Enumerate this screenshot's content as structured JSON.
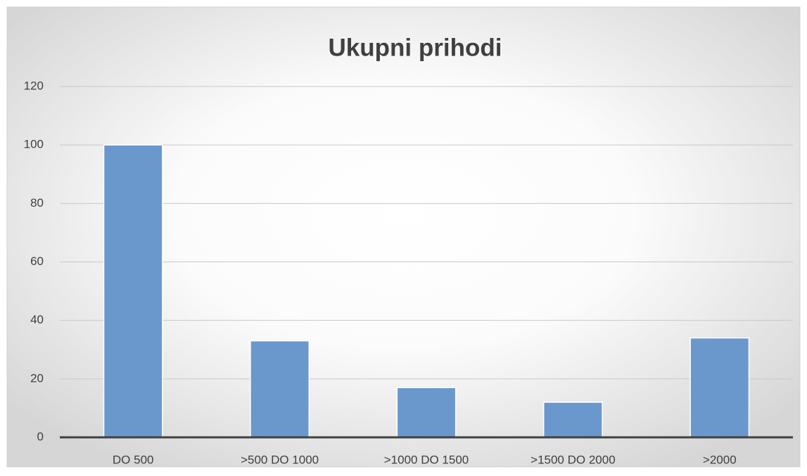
{
  "chart_data": {
    "type": "bar",
    "title": "Ukupni prihodi",
    "categories": [
      "DO 500",
      ">500 DO 1000",
      ">1000 DO 1500",
      ">1500 DO 2000",
      ">2000"
    ],
    "values": [
      100,
      33,
      17,
      12,
      34
    ],
    "color": "#6a98cc",
    "ylim": [
      0,
      120
    ],
    "yticks": [
      0,
      20,
      40,
      60,
      80,
      100,
      120
    ],
    "grid": true
  }
}
